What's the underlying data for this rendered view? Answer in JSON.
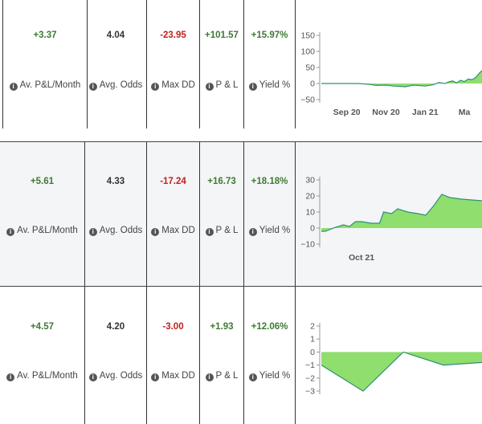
{
  "labels": {
    "av_pl_month": "Av. P&L/Month",
    "avg_odds": "Avg. Odds",
    "max_dd": "Max DD",
    "pl": "P & L",
    "yield": "Yield %",
    "info_glyph": "i"
  },
  "colors": {
    "positive": "#3d7a33",
    "negative": "#c0211b",
    "neutral": "#333333",
    "area_fill": "#8fde6e",
    "area_line": "#2f8f78",
    "shaded_row": "#f4f5f6"
  },
  "rows": [
    {
      "av_pl_month": "+3.37",
      "avg_odds": "4.04",
      "max_dd": "-23.95",
      "pl": "+101.57",
      "yield": "+15.97%"
    },
    {
      "av_pl_month": "+5.61",
      "avg_odds": "4.33",
      "max_dd": "-17.24",
      "pl": "+16.73",
      "yield": "+18.18%"
    },
    {
      "av_pl_month": "+4.57",
      "avg_odds": "4.20",
      "max_dd": "-3.00",
      "pl": "+1.93",
      "yield": "+12.06%"
    }
  ],
  "chart_data": [
    {
      "type": "area",
      "y_ticks": [
        "150",
        "100",
        "50",
        "0",
        "−50"
      ],
      "ylim": [
        -50,
        150
      ],
      "x_ticks": [
        "Sep 20",
        "Nov 20",
        "Jan 21",
        "Ma"
      ],
      "x_tick_pos": [
        0.0,
        2.0,
        4.0,
        6.0
      ],
      "x_range": [
        -1.3,
        6.9
      ],
      "x": [
        -1.3,
        0,
        0.6,
        1.2,
        1.5,
        2.0,
        2.4,
        3.0,
        3.4,
        4.0,
        4.4,
        4.7,
        5.0,
        5.2,
        5.4,
        5.6,
        5.8,
        6.0,
        6.2,
        6.4,
        6.6,
        6.8,
        6.9
      ],
      "y": [
        0,
        0,
        0,
        -3,
        -6,
        -5,
        -8,
        -10,
        -5,
        -8,
        -4,
        3,
        0,
        5,
        8,
        2,
        10,
        6,
        14,
        12,
        20,
        35,
        40
      ]
    },
    {
      "type": "area",
      "y_ticks": [
        "30",
        "20",
        "10",
        "0",
        "−10"
      ],
      "ylim": [
        -10,
        30
      ],
      "x_ticks": [
        "Oct 21"
      ],
      "x_tick_pos": [
        1.0
      ],
      "x_range": [
        -1.0,
        7.0
      ],
      "x": [
        -1.0,
        -0.8,
        -0.4,
        0.1,
        0.4,
        0.7,
        1.0,
        1.5,
        1.9,
        2.1,
        2.5,
        2.8,
        3.3,
        3.8,
        4.2,
        4.6,
        5.0,
        5.4,
        6.0,
        7.0
      ],
      "y": [
        -2,
        -2,
        0,
        2,
        1,
        4,
        4,
        3,
        3,
        10,
        9,
        12,
        10,
        9,
        8,
        14,
        21,
        19,
        18,
        17
      ]
    },
    {
      "type": "area",
      "y_ticks": [
        "2",
        "1",
        "0",
        "−1",
        "−2",
        "−3"
      ],
      "ylim": [
        -3,
        2
      ],
      "x_ticks": [],
      "x_tick_pos": [],
      "x_range": [
        0,
        1
      ],
      "x": [
        0,
        0.26,
        0.51,
        0.76,
        1.0
      ],
      "y": [
        -1,
        -3,
        0,
        -1,
        -0.8
      ]
    }
  ]
}
